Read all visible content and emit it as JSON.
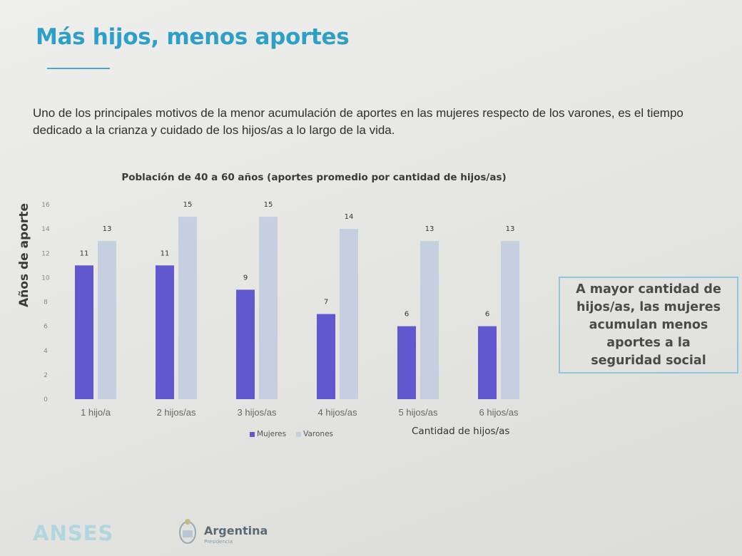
{
  "slide": {
    "title": "Más hijos, menos aportes",
    "intro": "Uno de los principales motivos de la menor acumulación de aportes en las mujeres respecto de los varones, es el tiempo dedicado a la crianza y cuidado de los hijos/as a lo largo de la vida."
  },
  "callout": {
    "text": "A mayor cantidad de hijos/as, las mujeres acumulan menos aportes a la seguridad social"
  },
  "footer": {
    "brand": "ANSES",
    "country": "Argentina",
    "sub": "Presidencia"
  },
  "colors": {
    "title": "#2e9fc6",
    "mujeres": "#6158cf",
    "varones": "#c6cfdf"
  },
  "chart_data": {
    "type": "bar",
    "title": "Población de 40 a 60 años (aportes promedio por cantidad de hijos/as)",
    "xlabel": "Cantidad de hijos/as",
    "ylabel": "Años de aporte",
    "ylim": [
      0,
      16
    ],
    "yticks": [
      0,
      2,
      4,
      6,
      8,
      10,
      12,
      14,
      16
    ],
    "grid": false,
    "legend_position": "bottom",
    "categories": [
      "1 hijo/a",
      "2 hijos/as",
      "3 hijos/as",
      "4 hijos/as",
      "5 hijos/as",
      "6 hijos/as"
    ],
    "series": [
      {
        "name": "Mujeres",
        "values": [
          11,
          11,
          9,
          7,
          6,
          6
        ]
      },
      {
        "name": "Varones",
        "values": [
          13,
          15,
          15,
          14,
          13,
          13
        ]
      }
    ]
  }
}
